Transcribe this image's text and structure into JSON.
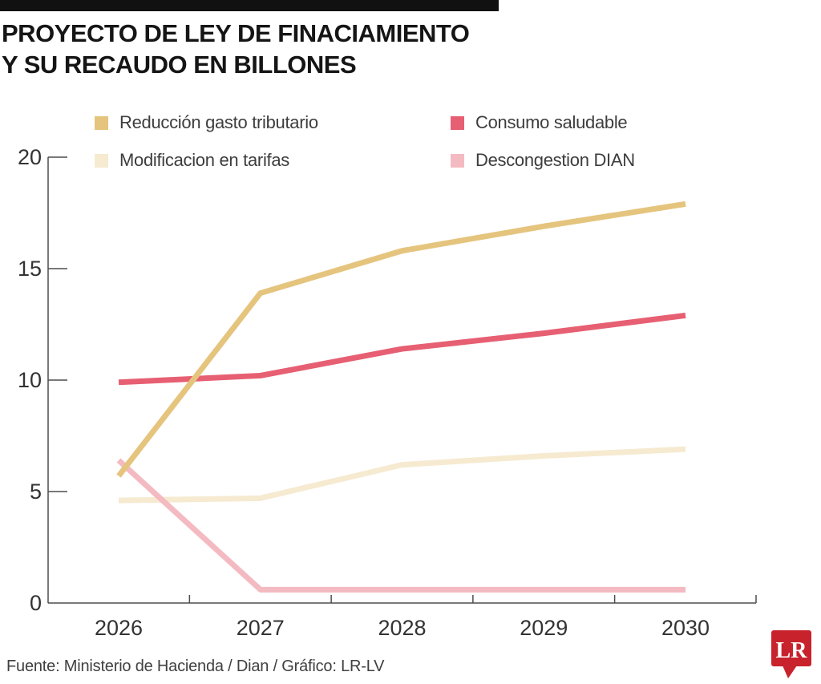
{
  "header": {
    "bar_color": "#111111",
    "title_line1": "PROYECTO DE LEY DE FINACIAMIENTO",
    "title_line2": "Y SU RECAUDO EN BILLONES"
  },
  "legend": {
    "items": [
      {
        "label": "Reducción gasto tributario",
        "color": "#e5c47d"
      },
      {
        "label": "Modificacion en tarifas",
        "color": "#f6ead0"
      },
      {
        "label": "Consumo saludable",
        "color": "#e75f72"
      },
      {
        "label": "Descongestion DIAN",
        "color": "#f4bac2"
      }
    ]
  },
  "chart_data": {
    "type": "line",
    "categories": [
      "2026",
      "2027",
      "2028",
      "2029",
      "2030"
    ],
    "series": [
      {
        "name": "Modificacion en tarifas",
        "color": "#f6ead0",
        "values": [
          4.6,
          4.7,
          6.2,
          6.6,
          6.9
        ]
      },
      {
        "name": "Descongestion DIAN",
        "color": "#f4bac2",
        "values": [
          6.4,
          0.6,
          0.6,
          0.6,
          0.6
        ]
      },
      {
        "name": "Consumo saludable",
        "color": "#e75f72",
        "values": [
          9.9,
          10.2,
          11.4,
          12.1,
          12.9
        ]
      },
      {
        "name": "Reducción gasto tributario",
        "color": "#e5c47d",
        "values": [
          5.7,
          13.9,
          15.8,
          16.9,
          17.9
        ]
      }
    ],
    "title": "PROYECTO DE LEY DE FINACIAMIENTO Y SU RECAUDO EN BILLONES",
    "xlabel": "",
    "ylabel": "",
    "ylim": [
      0,
      20
    ],
    "yticks": [
      0,
      5,
      10,
      15,
      20
    ],
    "grid": false,
    "legend_position": "top",
    "axis_color": "#4d4d4d",
    "tick_label_color": "#333333"
  },
  "footer": {
    "source": "Fuente: Ministerio de Hacienda / Dian / Gráfico: LR-LV"
  },
  "logo": {
    "text": "LR",
    "color": "#c8232c"
  }
}
